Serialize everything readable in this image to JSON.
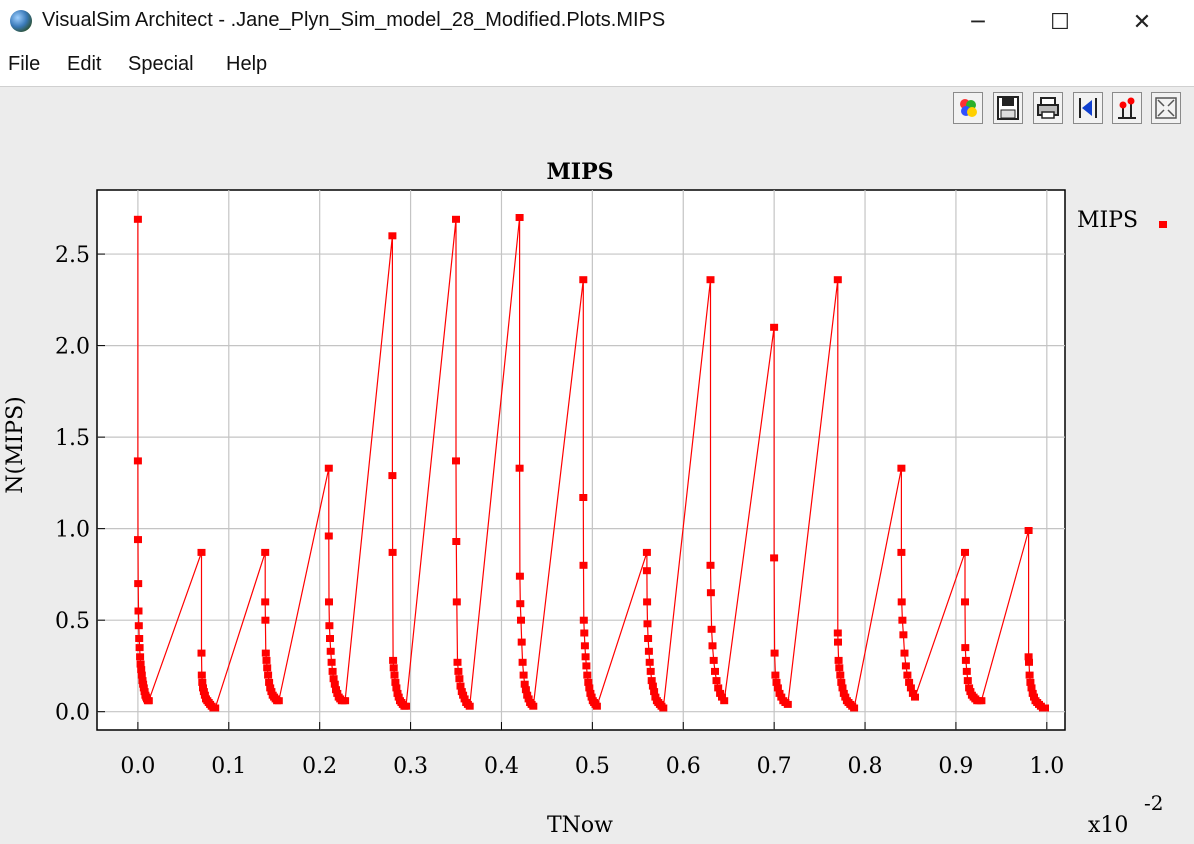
{
  "window": {
    "title": "VisualSim Architect - .Jane_Plyn_Sim_model_28_Modified.Plots.MIPS",
    "minimize": "─",
    "maximize": "☐",
    "close": "✕"
  },
  "menu": {
    "items": [
      {
        "label": "File"
      },
      {
        "label": "Edit"
      },
      {
        "label": "Special"
      },
      {
        "label": "Help"
      }
    ]
  },
  "toolbar": {
    "buttons": [
      {
        "icon": "color-palette-icon"
      },
      {
        "icon": "save-icon"
      },
      {
        "icon": "print-icon"
      },
      {
        "icon": "reset-axes-icon"
      },
      {
        "icon": "format-icon"
      },
      {
        "icon": "fill-icon"
      }
    ]
  },
  "chart_data": {
    "type": "line",
    "title": "MIPS",
    "xlabel": "TNow",
    "ylabel": "N(MIPS)",
    "x_multiplier_label": "x10",
    "x_multiplier_exponent": "-2",
    "xlim": [
      -0.045,
      1.02
    ],
    "ylim": [
      -0.1,
      2.85
    ],
    "x_ticks": [
      "0.0",
      "0.1",
      "0.2",
      "0.3",
      "0.4",
      "0.5",
      "0.6",
      "0.7",
      "0.8",
      "0.9",
      "1.0"
    ],
    "y_ticks": [
      "0.0",
      "0.5",
      "1.0",
      "1.5",
      "2.0",
      "2.5"
    ],
    "grid": true,
    "legend_position": "top-right",
    "marker_color": "#ff0000",
    "series": [
      {
        "name": "MIPS",
        "bursts": [
          {
            "x": 0.0,
            "peak": 2.69,
            "decay_end": 0.012,
            "jump_from": null,
            "mids": [
              1.37,
              0.94,
              0.7,
              0.55,
              0.47,
              0.4,
              0.35,
              0.3,
              0.26,
              0.23,
              0.2,
              0.17,
              0.15,
              0.13,
              0.11,
              0.09,
              0.08,
              0.07,
              0.06,
              0.06
            ]
          },
          {
            "x": 0.07,
            "peak": 0.87,
            "decay_end": 0.085,
            "jump_from": 0.012,
            "mids": [
              0.32,
              0.2,
              0.16,
              0.13,
              0.11,
              0.09,
              0.07,
              0.06,
              0.05,
              0.04,
              0.03,
              0.02,
              0.02
            ]
          },
          {
            "x": 0.14,
            "peak": 0.87,
            "decay_end": 0.155,
            "jump_from": 0.085,
            "mids": [
              0.6,
              0.5,
              0.32,
              0.28,
              0.24,
              0.2,
              0.16,
              0.13,
              0.11,
              0.09,
              0.08,
              0.07,
              0.06,
              0.06
            ]
          },
          {
            "x": 0.21,
            "peak": 1.33,
            "decay_end": 0.228,
            "jump_from": 0.155,
            "mids": [
              0.96,
              0.6,
              0.47,
              0.4,
              0.33,
              0.27,
              0.22,
              0.18,
              0.15,
              0.12,
              0.1,
              0.08,
              0.07,
              0.06,
              0.06,
              0.06
            ]
          },
          {
            "x": 0.28,
            "peak": 2.6,
            "decay_end": 0.295,
            "jump_from": 0.228,
            "mids": [
              1.29,
              0.87,
              0.28,
              0.24,
              0.2,
              0.16,
              0.13,
              0.1,
              0.08,
              0.06,
              0.05,
              0.04,
              0.03,
              0.03
            ]
          },
          {
            "x": 0.35,
            "peak": 2.69,
            "decay_end": 0.365,
            "jump_from": 0.295,
            "mids": [
              1.37,
              0.93,
              0.6,
              0.27,
              0.22,
              0.18,
              0.14,
              0.11,
              0.09,
              0.07,
              0.05,
              0.04,
              0.03
            ]
          },
          {
            "x": 0.42,
            "peak": 2.7,
            "decay_end": 0.435,
            "jump_from": 0.365,
            "mids": [
              1.33,
              0.74,
              0.59,
              0.5,
              0.38,
              0.27,
              0.2,
              0.15,
              0.12,
              0.09,
              0.07,
              0.05,
              0.04,
              0.03
            ]
          },
          {
            "x": 0.49,
            "peak": 2.36,
            "decay_end": 0.505,
            "jump_from": 0.435,
            "mids": [
              1.17,
              0.8,
              0.5,
              0.43,
              0.36,
              0.3,
              0.25,
              0.2,
              0.16,
              0.13,
              0.1,
              0.08,
              0.06,
              0.05,
              0.04,
              0.03
            ]
          },
          {
            "x": 0.56,
            "peak": 0.87,
            "decay_end": 0.578,
            "jump_from": 0.505,
            "mids": [
              0.77,
              0.6,
              0.48,
              0.4,
              0.33,
              0.27,
              0.22,
              0.17,
              0.14,
              0.11,
              0.08,
              0.06,
              0.05,
              0.04,
              0.03,
              0.02
            ]
          },
          {
            "x": 0.63,
            "peak": 2.36,
            "decay_end": 0.645,
            "jump_from": 0.578,
            "mids": [
              0.8,
              0.65,
              0.45,
              0.36,
              0.28,
              0.22,
              0.17,
              0.13,
              0.1,
              0.08,
              0.06
            ]
          },
          {
            "x": 0.7,
            "peak": 2.1,
            "decay_end": 0.715,
            "jump_from": 0.645,
            "mids": [
              0.84,
              0.32,
              0.2,
              0.16,
              0.13,
              0.1,
              0.08,
              0.06,
              0.05,
              0.04
            ]
          },
          {
            "x": 0.77,
            "peak": 2.36,
            "decay_end": 0.788,
            "jump_from": 0.715,
            "mids": [
              0.43,
              0.38,
              0.28,
              0.24,
              0.2,
              0.16,
              0.13,
              0.1,
              0.08,
              0.06,
              0.05,
              0.04,
              0.03,
              0.02
            ]
          },
          {
            "x": 0.84,
            "peak": 1.33,
            "decay_end": 0.855,
            "jump_from": 0.788,
            "mids": [
              0.87,
              0.6,
              0.5,
              0.42,
              0.32,
              0.25,
              0.2,
              0.16,
              0.13,
              0.1,
              0.08
            ]
          },
          {
            "x": 0.91,
            "peak": 0.87,
            "decay_end": 0.928,
            "jump_from": 0.855,
            "mids": [
              0.6,
              0.35,
              0.28,
              0.22,
              0.17,
              0.13,
              0.11,
              0.09,
              0.08,
              0.07,
              0.06,
              0.06,
              0.06
            ]
          },
          {
            "x": 0.98,
            "peak": 0.99,
            "decay_end": 0.998,
            "jump_from": 0.928,
            "mids": [
              0.3,
              0.27,
              0.2,
              0.16,
              0.13,
              0.1,
              0.08,
              0.06,
              0.05,
              0.04,
              0.03,
              0.02,
              0.02
            ]
          }
        ]
      }
    ]
  }
}
